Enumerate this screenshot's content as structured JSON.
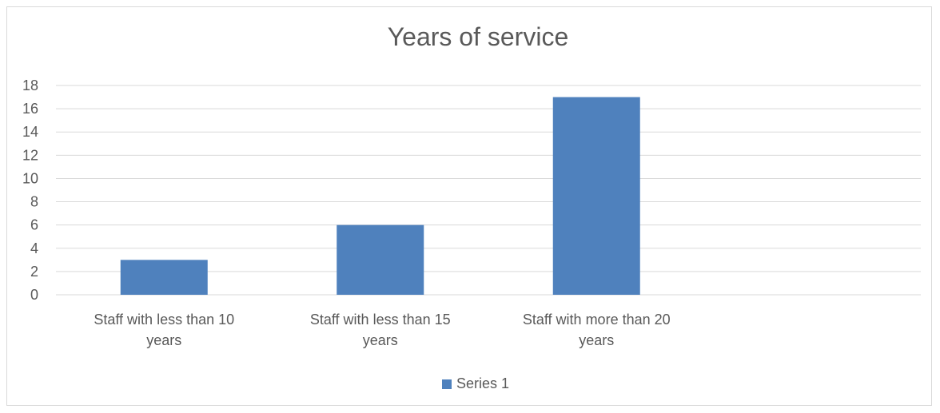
{
  "chart_data": {
    "type": "bar",
    "title": "Years of service",
    "xlabel": "",
    "ylabel": "",
    "categories": [
      [
        "Staff with less than 10",
        "years"
      ],
      [
        "Staff with less than 15",
        "years"
      ],
      [
        "Staff with more than 20",
        "years"
      ]
    ],
    "series": [
      {
        "name": "Series 1",
        "values": [
          3,
          6,
          17
        ],
        "color": "#4f81bd"
      }
    ],
    "ylim": [
      0,
      18
    ],
    "yticks": [
      "0",
      "2",
      "4",
      "6",
      "8",
      "10",
      "12",
      "14",
      "16",
      "18"
    ],
    "grid": true,
    "legend_position": "bottom"
  }
}
